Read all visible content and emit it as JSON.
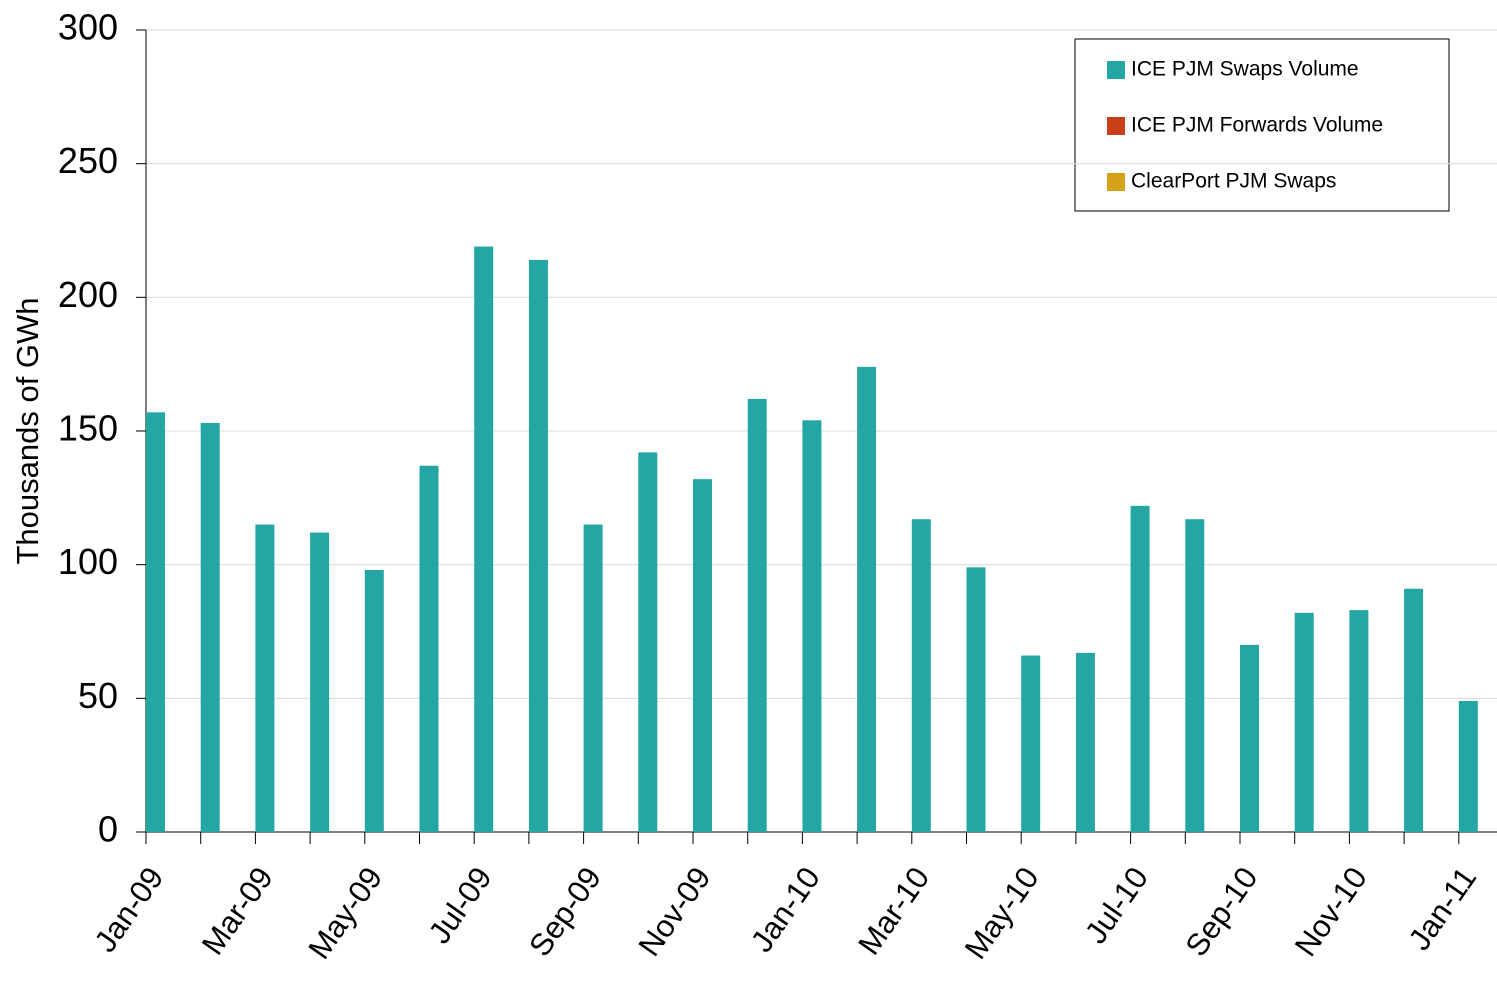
{
  "chart_data": {
    "type": "bar",
    "stacked": true,
    "y_label": "Thousands of GWh",
    "categories": [
      "Jan-09",
      null,
      "Mar-09",
      null,
      "May-09",
      null,
      "Jul-09",
      null,
      "Sep-09",
      null,
      "Nov-09",
      null,
      "Jan-10",
      null,
      "Mar-10",
      null,
      "May-10",
      null,
      "Jul-10",
      null,
      "Sep-10",
      null,
      "Nov-10",
      null,
      "Jan-11"
    ],
    "series": [
      {
        "name": "ICE PJM Swaps Volume",
        "color": "#24a6a4",
        "values": [
          157,
          153,
          115,
          112,
          98,
          137,
          219,
          214,
          115,
          142,
          132,
          162,
          154,
          174,
          117,
          99,
          66,
          67,
          122,
          117,
          70,
          82,
          83,
          91,
          49
        ]
      },
      {
        "name": "ICE PJM Forwards Volume",
        "color": "#c8401a",
        "values": [
          0,
          0,
          0,
          0,
          0,
          0,
          0,
          0,
          0,
          0,
          0,
          0,
          0,
          0,
          0,
          0,
          0,
          0,
          0,
          0,
          0,
          0,
          0,
          0,
          0
        ]
      },
      {
        "name": "ClearPort PJM Swaps",
        "color": "#d4a017",
        "values": [
          0,
          0,
          0,
          0,
          0,
          0,
          0,
          0,
          0,
          0,
          0,
          0,
          0,
          0,
          0,
          0,
          0,
          0,
          0,
          0,
          0,
          0,
          0,
          0,
          0
        ]
      }
    ],
    "ylim": [
      0,
      300
    ],
    "yticks": [
      0,
      50,
      100,
      150,
      200,
      250,
      300
    ],
    "grid": true
  }
}
